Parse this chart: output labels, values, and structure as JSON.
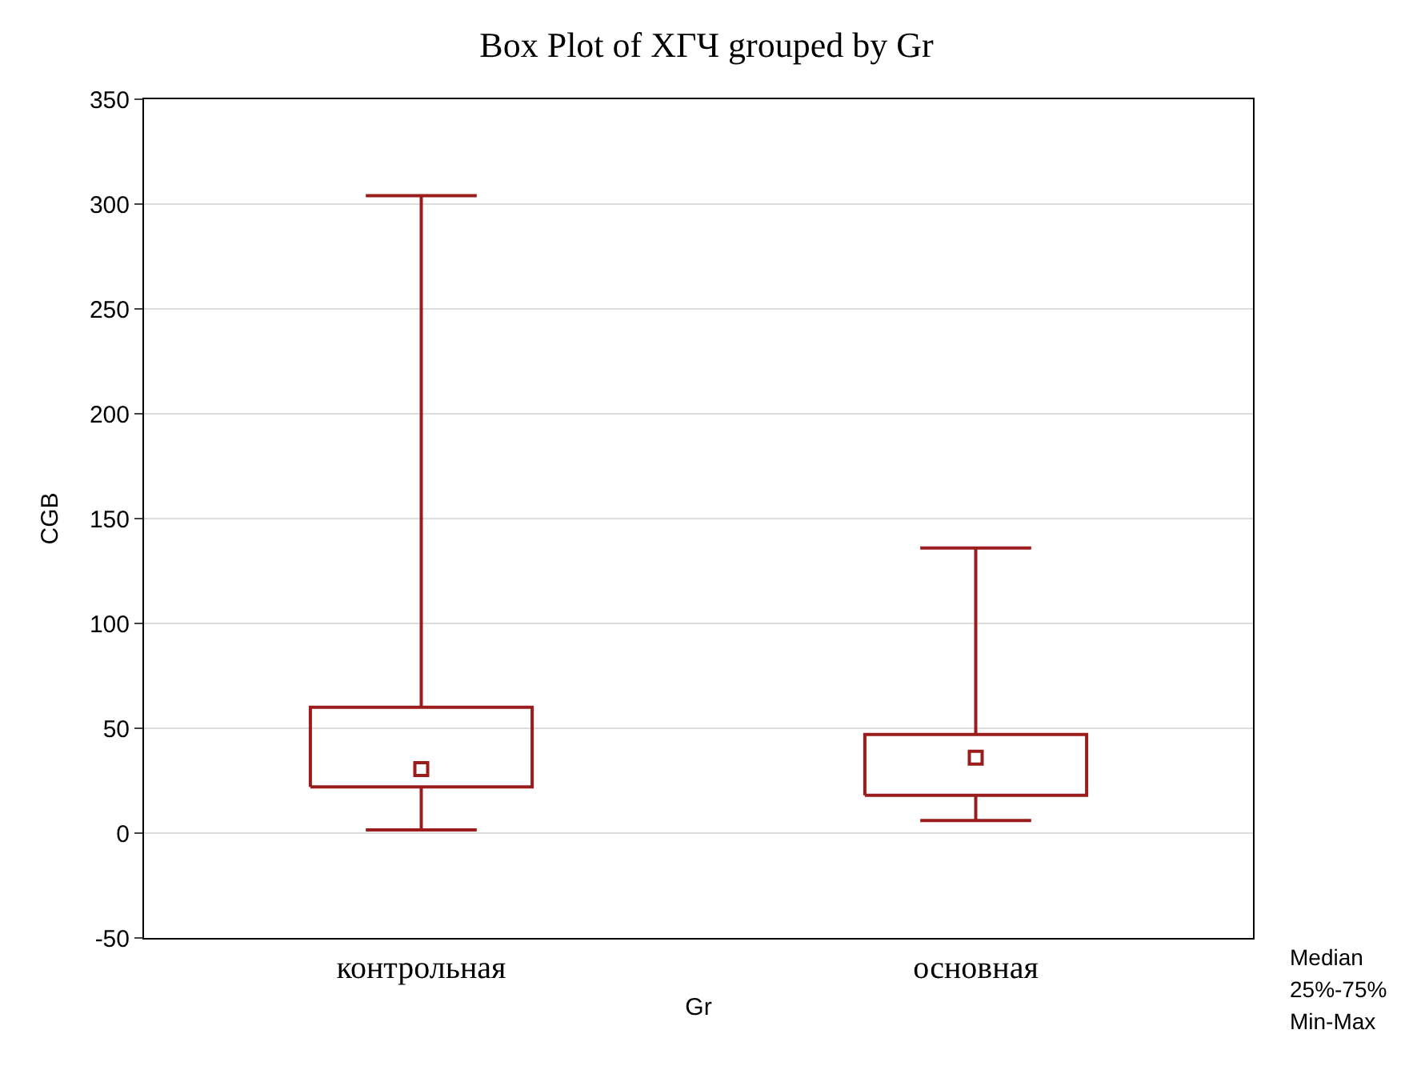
{
  "chart_data": {
    "type": "box",
    "title": "Box Plot of ХГЧ grouped by Gr",
    "xlabel": "Gr",
    "ylabel": "CGB",
    "categories": [
      "контрольная",
      "основная"
    ],
    "boxes": [
      {
        "low": 1.5,
        "q1": 22,
        "median": 30.5,
        "q3": 60,
        "high": 304
      },
      {
        "low": 6,
        "q1": 18,
        "median": 36,
        "q3": 47,
        "high": 136
      }
    ],
    "color": "#9b1c1c",
    "annotations": [
      "Median",
      "25%-75%",
      "Min-Max"
    ],
    "ylim": [
      -50,
      350
    ],
    "yticks": [
      -50,
      0,
      50,
      100,
      150,
      200,
      250,
      300,
      350
    ],
    "grid": "y"
  }
}
